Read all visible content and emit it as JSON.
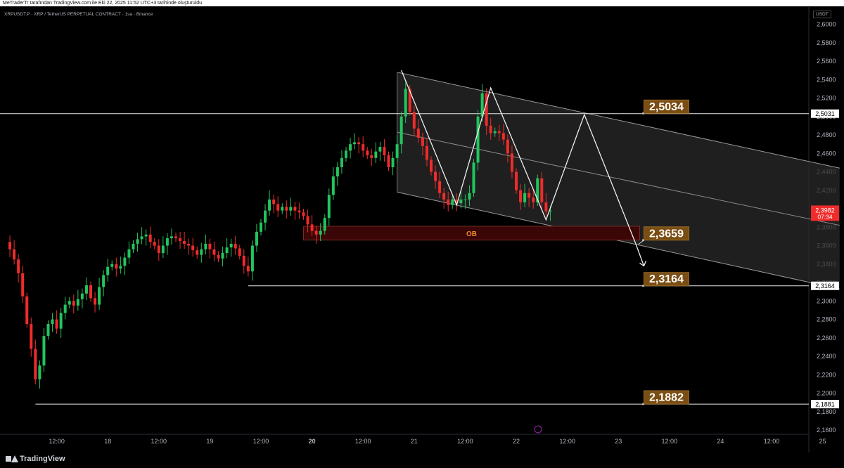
{
  "header": {
    "attribution": "MeTraderTr tarafından TradingView.com ile Eki 22, 2025 11:52 UTC+3 tarihinde oluşturuldu",
    "symbol_line": "XRPUSDT.P · XRP / TetherUS PERPETUAL CONTRACT · 1sa · Binance",
    "currency": "USDT"
  },
  "footer": {
    "logo_text": "TradingView"
  },
  "colors": {
    "bull": "#22c55e",
    "bear": "#ef2b2b",
    "level_line": "#e8e8e8",
    "label_bg": "#7a4d12",
    "label_text": "#ffffff",
    "ob_fill": "#3a0606",
    "ob_text": "#f08a2a",
    "channel_fill": "#2a2a2a",
    "price_tag": "#ef2b2b"
  },
  "chart_data": {
    "type": "candlestick",
    "ylim": [
      2.16,
      2.605
    ],
    "y_ticks": [
      "2,6000",
      "2,5800",
      "2,5600",
      "2,5400",
      "2,5200",
      "2,5000",
      "2,4800",
      "2,4600",
      "2,4400",
      "2,4200",
      "2,4000",
      "2,3800",
      "2,3600",
      "2,3400",
      "2,3200",
      "2,3000",
      "2,2800",
      "2,2600",
      "2,2400",
      "2,2200",
      "2,2000",
      "2,1800",
      "2,1600"
    ],
    "y_tick_values": [
      2.6,
      2.58,
      2.56,
      2.54,
      2.52,
      2.5,
      2.48,
      2.46,
      2.44,
      2.42,
      2.4,
      2.38,
      2.36,
      2.34,
      2.32,
      2.3,
      2.28,
      2.26,
      2.24,
      2.22,
      2.2,
      2.18,
      2.16
    ],
    "x_ticks": [
      {
        "label": "12:00",
        "t": 12
      },
      {
        "label": "18",
        "t": 24
      },
      {
        "label": "12:00",
        "t": 36
      },
      {
        "label": "19",
        "t": 48
      },
      {
        "label": "12:00",
        "t": 60
      },
      {
        "label": "20",
        "t": 72,
        "bold": true
      },
      {
        "label": "12:00",
        "t": 84
      },
      {
        "label": "21",
        "t": 96
      },
      {
        "label": "12:00",
        "t": 108
      },
      {
        "label": "22",
        "t": 120
      },
      {
        "label": "12:00",
        "t": 132
      },
      {
        "label": "23",
        "t": 144
      },
      {
        "label": "12:00",
        "t": 156
      },
      {
        "label": "24",
        "t": 168
      },
      {
        "label": "12:00",
        "t": 180
      },
      {
        "label": "25",
        "t": 192
      }
    ],
    "close_path": [
      [
        0,
        2.364
      ],
      [
        1,
        2.356
      ],
      [
        2,
        2.345
      ],
      [
        3,
        2.33
      ],
      [
        4,
        2.305
      ],
      [
        5,
        2.275
      ],
      [
        6,
        2.248
      ],
      [
        7,
        2.215
      ],
      [
        8,
        2.23
      ],
      [
        9,
        2.262
      ],
      [
        10,
        2.275
      ],
      [
        11,
        2.28
      ],
      [
        12,
        2.27
      ],
      [
        13,
        2.287
      ],
      [
        14,
        2.296
      ],
      [
        15,
        2.3
      ],
      [
        16,
        2.295
      ],
      [
        17,
        2.302
      ],
      [
        18,
        2.308
      ],
      [
        19,
        2.317
      ],
      [
        20,
        2.303
      ],
      [
        21,
        2.296
      ],
      [
        22,
        2.315
      ],
      [
        23,
        2.328
      ],
      [
        24,
        2.337
      ],
      [
        25,
        2.34
      ],
      [
        26,
        2.335
      ],
      [
        27,
        2.338
      ],
      [
        28,
        2.347
      ],
      [
        29,
        2.356
      ],
      [
        30,
        2.362
      ],
      [
        31,
        2.367
      ],
      [
        32,
        2.37
      ],
      [
        33,
        2.372
      ],
      [
        34,
        2.364
      ],
      [
        35,
        2.36
      ],
      [
        36,
        2.352
      ],
      [
        37,
        2.36
      ],
      [
        38,
        2.368
      ],
      [
        39,
        2.37
      ],
      [
        40,
        2.368
      ],
      [
        41,
        2.365
      ],
      [
        42,
        2.362
      ],
      [
        43,
        2.36
      ],
      [
        44,
        2.355
      ],
      [
        45,
        2.35
      ],
      [
        46,
        2.356
      ],
      [
        47,
        2.362
      ],
      [
        48,
        2.356
      ],
      [
        49,
        2.35
      ],
      [
        50,
        2.346
      ],
      [
        51,
        2.352
      ],
      [
        52,
        2.358
      ],
      [
        53,
        2.362
      ],
      [
        54,
        2.357
      ],
      [
        55,
        2.349
      ],
      [
        56,
        2.338
      ],
      [
        57,
        2.332
      ],
      [
        58,
        2.36
      ],
      [
        59,
        2.375
      ],
      [
        60,
        2.385
      ],
      [
        61,
        2.398
      ],
      [
        62,
        2.41
      ],
      [
        63,
        2.405
      ],
      [
        64,
        2.398
      ],
      [
        65,
        2.402
      ],
      [
        66,
        2.398
      ],
      [
        67,
        2.402
      ],
      [
        68,
        2.398
      ],
      [
        69,
        2.396
      ],
      [
        70,
        2.392
      ],
      [
        71,
        2.383
      ],
      [
        72,
        2.376
      ],
      [
        73,
        2.372
      ],
      [
        74,
        2.376
      ],
      [
        75,
        2.39
      ],
      [
        76,
        2.415
      ],
      [
        77,
        2.435
      ],
      [
        78,
        2.445
      ],
      [
        79,
        2.455
      ],
      [
        80,
        2.463
      ],
      [
        81,
        2.47
      ],
      [
        82,
        2.472
      ],
      [
        83,
        2.47
      ],
      [
        84,
        2.463
      ],
      [
        85,
        2.458
      ],
      [
        86,
        2.455
      ],
      [
        87,
        2.462
      ],
      [
        88,
        2.467
      ],
      [
        89,
        2.458
      ],
      [
        90,
        2.445
      ],
      [
        91,
        2.455
      ],
      [
        92,
        2.47
      ],
      [
        93,
        2.5
      ],
      [
        94,
        2.53
      ],
      [
        95,
        2.505
      ],
      [
        96,
        2.487
      ],
      [
        97,
        2.477
      ],
      [
        98,
        2.468
      ],
      [
        99,
        2.453
      ],
      [
        100,
        2.44
      ],
      [
        101,
        2.43
      ],
      [
        102,
        2.417
      ],
      [
        103,
        2.41
      ],
      [
        104,
        2.404
      ],
      [
        105,
        2.41
      ],
      [
        106,
        2.406
      ],
      [
        107,
        2.41
      ],
      [
        108,
        2.41
      ],
      [
        109,
        2.417
      ],
      [
        110,
        2.45
      ],
      [
        111,
        2.5
      ],
      [
        112,
        2.525
      ],
      [
        113,
        2.49
      ],
      [
        114,
        2.482
      ],
      [
        115,
        2.484
      ],
      [
        116,
        2.482
      ],
      [
        117,
        2.475
      ],
      [
        118,
        2.46
      ],
      [
        119,
        2.44
      ],
      [
        120,
        2.42
      ],
      [
        121,
        2.407
      ],
      [
        122,
        2.417
      ],
      [
        123,
        2.412
      ],
      [
        124,
        2.407
      ],
      [
        125,
        2.433
      ],
      [
        126,
        2.407
      ],
      [
        127,
        2.397
      ],
      [
        128,
        2.398
      ]
    ],
    "last_candle_index": 128,
    "levels": [
      {
        "name": "level-2-5031",
        "value": 2.5031,
        "label": "2,5031",
        "x_start": -2
      },
      {
        "name": "level-2-3164",
        "value": 2.3164,
        "label": "2,3164",
        "x_start": 57
      },
      {
        "name": "level-2-1881",
        "value": 2.1881,
        "label": "2,1881",
        "x_start": 7
      }
    ],
    "callouts": [
      {
        "name": "callout-2-5034",
        "text": "2,5034",
        "value": 2.5034
      },
      {
        "name": "callout-2-3659",
        "text": "2,3659",
        "value": 2.3659
      },
      {
        "name": "callout-2-3164",
        "text": "2,3164",
        "value": 2.3164
      },
      {
        "name": "callout-2-1882",
        "text": "2,1882",
        "value": 2.1882
      }
    ],
    "callout_t": 150,
    "order_block": {
      "label": "OB",
      "t0": 70,
      "t1": 149,
      "y_top": 2.381,
      "y_bottom": 2.366
    },
    "channel": {
      "upper": [
        [
          92,
          2.548
        ],
        [
          196,
          2.444
        ]
      ],
      "lower": [
        [
          92,
          2.418
        ],
        [
          196,
          2.313
        ]
      ],
      "upper_right": [
        196,
        2.453
      ],
      "lower_right": [
        196,
        2.317
      ],
      "mid": [
        [
          92,
          2.483
        ],
        [
          196,
          2.382
        ]
      ]
    },
    "zigzag": [
      [
        93,
        2.55
      ],
      [
        106,
        2.404
      ],
      [
        114,
        2.531
      ],
      [
        127,
        2.388
      ],
      [
        136,
        2.502
      ],
      [
        148,
        2.363
      ]
    ],
    "arrow_to": [
      150,
      2.338
    ],
    "last_price": {
      "value": 2.3982,
      "label": "2,3982",
      "countdown": "07:34"
    }
  }
}
